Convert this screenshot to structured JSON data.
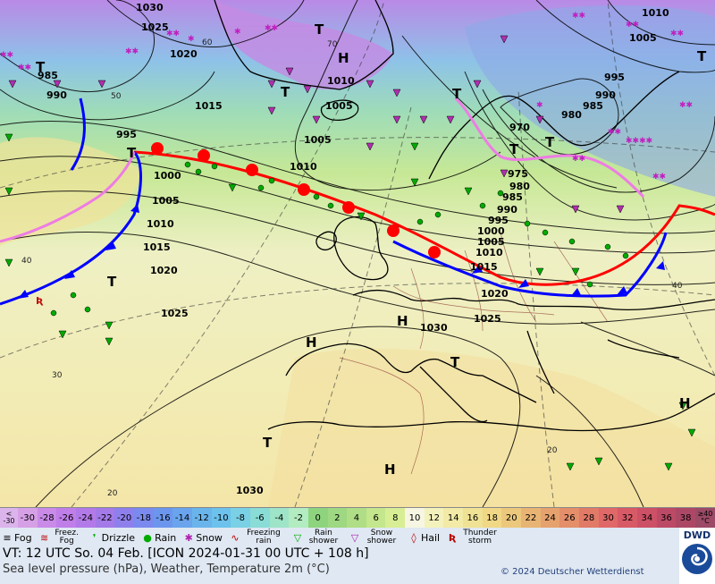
{
  "map": {
    "pressure_labels": [
      "1030",
      "1025",
      "1020",
      "1015",
      "1010",
      "1005",
      "1000",
      "995",
      "990",
      "985",
      "980",
      "975",
      "970"
    ],
    "isotherm_labels": [
      "70",
      "60",
      "50",
      "40",
      "30",
      "20"
    ],
    "highs": [
      "H",
      "H",
      "H",
      "H",
      "H"
    ],
    "lows": [
      "T",
      "T",
      "T",
      "T",
      "T",
      "T",
      "T",
      "T",
      "T",
      "T",
      "T"
    ]
  },
  "scale": {
    "low_end": {
      "top": "<",
      "bottom": "-30"
    },
    "values": [
      "-30",
      "-28",
      "-26",
      "-24",
      "-22",
      "-20",
      "-18",
      "-16",
      "-14",
      "-12",
      "-10",
      "-8",
      "-6",
      "-4",
      "-2",
      "0",
      "2",
      "4",
      "6",
      "8",
      "10",
      "12",
      "14",
      "16",
      "18",
      "20",
      "22",
      "24",
      "26",
      "28",
      "30",
      "32",
      "34",
      "36",
      "38"
    ],
    "colors": [
      "#d6a0e6",
      "#c98ae8",
      "#bf7ee8",
      "#b27ae8",
      "#a37ae8",
      "#8e80ec",
      "#7a8aee",
      "#6c96ee",
      "#6aa4ec",
      "#6ab4ec",
      "#6cc2ec",
      "#7ad0e4",
      "#8adcd6",
      "#9ee4c8",
      "#b2ecc0",
      "#8ed47e",
      "#9ed882",
      "#b0de86",
      "#c4e68c",
      "#d8ee94",
      "#f6f6e2",
      "#f4f2bc",
      "#f2eaa6",
      "#f0e294",
      "#f0d886",
      "#ecc87c",
      "#e8b474",
      "#e6a26e",
      "#e48e6a",
      "#e27a68",
      "#e06868",
      "#d85a66",
      "#cc5066",
      "#bc4a66",
      "#ac4866"
    ],
    "high_end": {
      "top": "≥40",
      "bottom": "°C"
    }
  },
  "legend": [
    {
      "icon": "fog-icon",
      "label": "Fog"
    },
    {
      "icon": "freezing-fog-icon",
      "label": "Freez. Fog"
    },
    {
      "icon": "drizzle-icon",
      "label": "Drizzle"
    },
    {
      "icon": "rain-icon",
      "label": "Rain"
    },
    {
      "icon": "snow-icon",
      "label": "Snow"
    },
    {
      "icon": "freezing-rain-icon",
      "label": "Freezing rain"
    },
    {
      "icon": "rain-shower-icon",
      "label": "Rain shower"
    },
    {
      "icon": "snow-shower-icon",
      "label": "Snow shower"
    },
    {
      "icon": "hail-icon",
      "label": "Hail"
    },
    {
      "icon": "thunderstorm-icon",
      "label": "Thunder storm"
    }
  ],
  "info": {
    "valid_time": "VT: 12 UTC So.  04 Feb. [ICON 2024-01-31  00 UTC + 108 h]",
    "description": "Sea level pressure (hPa), Weather, Temperature 2m (°C)",
    "copyright": "© 2024 Deutscher Wetterdienst",
    "logo": "DWD"
  }
}
